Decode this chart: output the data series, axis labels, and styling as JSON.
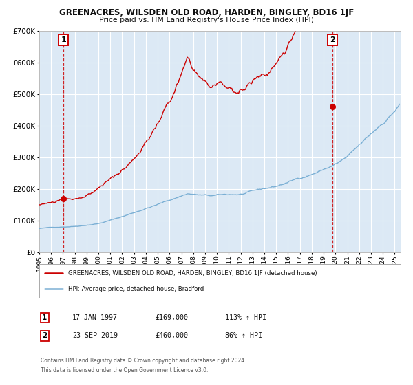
{
  "title": "GREENACRES, WILSDEN OLD ROAD, HARDEN, BINGLEY, BD16 1JF",
  "subtitle": "Price paid vs. HM Land Registry's House Price Index (HPI)",
  "legend_label_red": "GREENACRES, WILSDEN OLD ROAD, HARDEN, BINGLEY, BD16 1JF (detached house)",
  "legend_label_blue": "HPI: Average price, detached house, Bradford",
  "annotation1_date": "17-JAN-1997",
  "annotation1_price": "£169,000",
  "annotation1_hpi": "113% ↑ HPI",
  "annotation2_date": "23-SEP-2019",
  "annotation2_price": "£460,000",
  "annotation2_hpi": "86% ↑ HPI",
  "footnote1": "Contains HM Land Registry data © Crown copyright and database right 2024.",
  "footnote2": "This data is licensed under the Open Government Licence v3.0.",
  "sale1_year": 1997.04,
  "sale1_price": 169000,
  "sale2_year": 2019.73,
  "sale2_price": 460000,
  "xmin": 1995,
  "xmax": 2025.5,
  "ymin": 0,
  "ymax": 700000,
  "red_color": "#cc0000",
  "blue_color": "#7aafd4",
  "bg_color": "#dce9f5",
  "grid_color": "#ffffff",
  "fig_bg": "#ffffff"
}
